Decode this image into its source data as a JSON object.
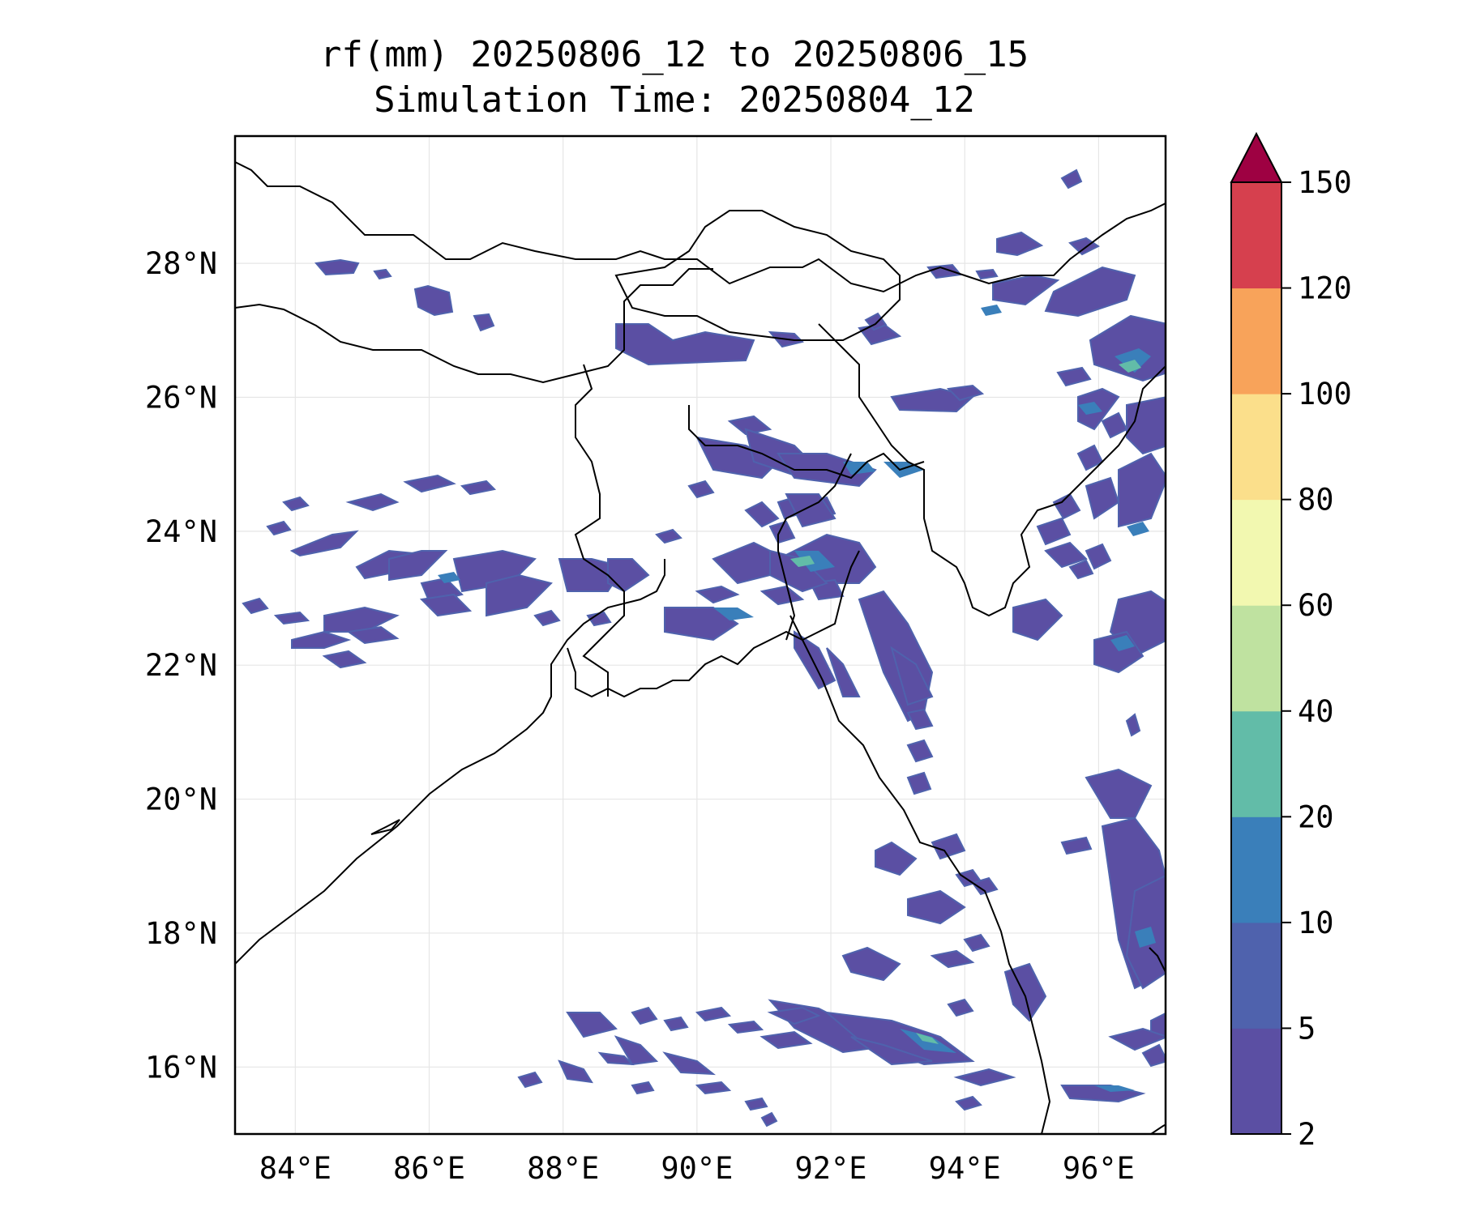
{
  "title": {
    "line1": "rf(mm) 20250806_12 to 20250806_15",
    "line2": "Simulation Time: 20250804_12"
  },
  "map": {
    "lon_range": [
      83.1,
      97.0
    ],
    "lat_range": [
      15.0,
      29.9
    ],
    "lon_ticks": [
      "84°E",
      "86°E",
      "88°E",
      "90°E",
      "92°E",
      "94°E",
      "96°E"
    ],
    "lat_ticks": [
      "16°N",
      "18°N",
      "20°N",
      "22°N",
      "24°N",
      "26°N",
      "28°N"
    ],
    "gridlines": true
  },
  "colorbar": {
    "levels": [
      "2",
      "5",
      "10",
      "20",
      "40",
      "60",
      "80",
      "100",
      "120",
      "150"
    ],
    "colors": [
      "#5b4fa3",
      "#4f62ad",
      "#3a7fba",
      "#62bca8",
      "#bfe2a0",
      "#f2f8b0",
      "#fbdf8b",
      "#f8a35a",
      "#d6404e",
      "#9e0142"
    ],
    "extend": "max"
  }
}
